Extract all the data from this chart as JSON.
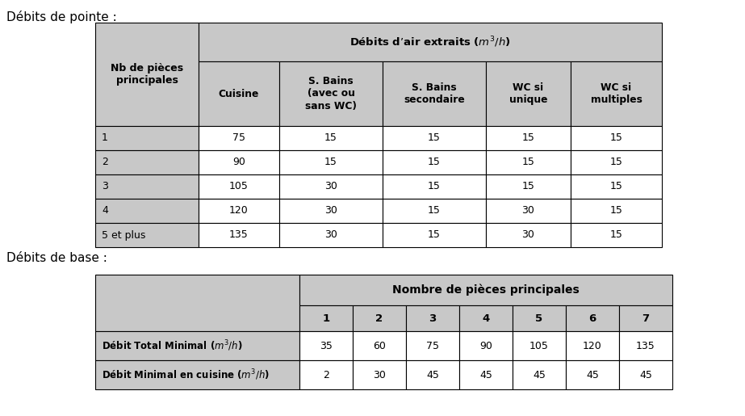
{
  "title1": "Débits de pointe :",
  "title2": "Débits de base :",
  "table1": {
    "header_col": "Nb de pièces\nprincipales",
    "header_span": "Débits d’air extraits ($m^3/h$)",
    "sub_headers": [
      "Cuisine",
      "S. Bains\n(avec ou\nsans WC)",
      "S. Bains\nsecondaire",
      "WC si\nunique",
      "WC si\nmultiples"
    ],
    "rows": [
      [
        "1",
        "75",
        "15",
        "15",
        "15",
        "15"
      ],
      [
        "2",
        "90",
        "15",
        "15",
        "15",
        "15"
      ],
      [
        "3",
        "105",
        "30",
        "15",
        "15",
        "15"
      ],
      [
        "4",
        "120",
        "30",
        "15",
        "30",
        "15"
      ],
      [
        "5 et plus",
        "135",
        "30",
        "15",
        "30",
        "15"
      ]
    ],
    "header_bg": "#c8c8c8",
    "row_bg": "#ffffff"
  },
  "table2": {
    "header_span": "Nombre de pièces principales",
    "sub_headers": [
      "1",
      "2",
      "3",
      "4",
      "5",
      "6",
      "7"
    ],
    "row_labels": [
      "Débit Total Minimal ($m^3/h$)",
      "Débit Minimal en cuisine ($m^3/h$)"
    ],
    "rows": [
      [
        "35",
        "60",
        "75",
        "90",
        "105",
        "120",
        "135"
      ],
      [
        "2",
        "30",
        "45",
        "45",
        "45",
        "45",
        "45"
      ]
    ],
    "header_bg": "#c8c8c8",
    "row_bg": "#ffffff"
  },
  "bg_color": "#ffffff"
}
